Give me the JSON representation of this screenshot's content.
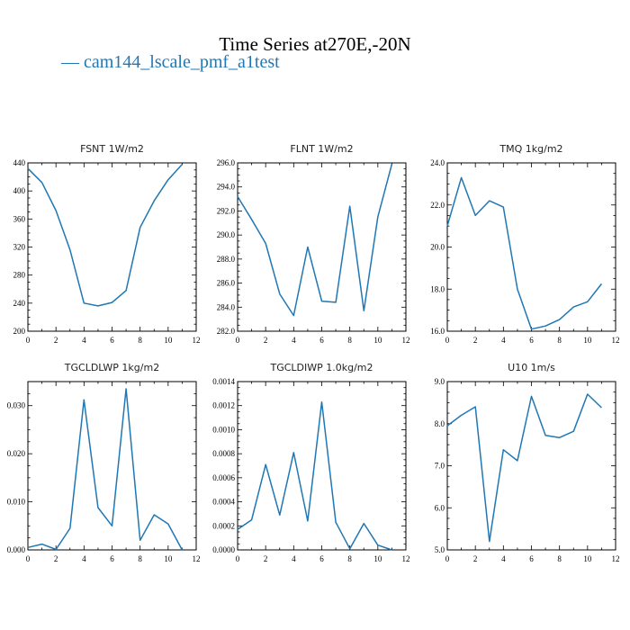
{
  "figure": {
    "title": "Time Series at270E,-20N",
    "legend": "— cam144_lscale_pmf_a1test",
    "series_color": "#1f77b4"
  },
  "chart_data": [
    {
      "type": "line",
      "title": "FSNT   1W/m2",
      "x": [
        0,
        1,
        2,
        3,
        4,
        5,
        6,
        7,
        8,
        9,
        10,
        11
      ],
      "values": [
        432,
        412,
        372,
        316,
        240,
        236,
        241,
        258,
        348,
        386,
        416,
        438
      ],
      "xlim": [
        0,
        12
      ],
      "ylim": [
        200,
        440
      ],
      "xticks": [
        0,
        2,
        4,
        6,
        8,
        10,
        12
      ],
      "yticks": [
        200,
        240,
        280,
        320,
        360,
        400,
        440
      ],
      "ytick_labels": [
        "200",
        "240",
        "280",
        "320",
        "360",
        "400",
        "440"
      ]
    },
    {
      "type": "line",
      "title": "FLNT   1W/m2",
      "x": [
        0,
        1,
        2,
        3,
        4,
        5,
        6,
        7,
        8,
        9,
        10,
        11
      ],
      "values": [
        293.2,
        291.3,
        289.3,
        285.1,
        283.3,
        289.0,
        284.5,
        284.4,
        292.4,
        283.7,
        291.5,
        295.9
      ],
      "xlim": [
        0,
        12
      ],
      "ylim": [
        282,
        296
      ],
      "xticks": [
        0,
        2,
        4,
        6,
        8,
        10,
        12
      ],
      "yticks": [
        282,
        284,
        286,
        288,
        290,
        292,
        294,
        296
      ],
      "ytick_labels": [
        "282.0",
        "284.0",
        "286.0",
        "288.0",
        "290.0",
        "292.0",
        "294.0",
        "296.0"
      ]
    },
    {
      "type": "line",
      "title": "TMQ   1kg/m2",
      "x": [
        0,
        1,
        2,
        3,
        4,
        5,
        6,
        7,
        8,
        9,
        10,
        11
      ],
      "values": [
        21.0,
        23.3,
        21.5,
        22.2,
        21.9,
        18.0,
        16.1,
        16.25,
        16.55,
        17.15,
        17.4,
        18.25
      ],
      "xlim": [
        0,
        12
      ],
      "ylim": [
        16,
        24
      ],
      "xticks": [
        0,
        2,
        4,
        6,
        8,
        10,
        12
      ],
      "yticks": [
        16,
        18,
        20,
        22,
        24
      ],
      "ytick_labels": [
        "16.0",
        "18.0",
        "20.0",
        "22.0",
        "24.0"
      ]
    },
    {
      "type": "line",
      "title": "TGCLDLWP   1kg/m2",
      "x": [
        0,
        1,
        2,
        3,
        4,
        5,
        6,
        7,
        8,
        9,
        10,
        11
      ],
      "values": [
        0.0005,
        0.0012,
        0.0001,
        0.0045,
        0.0312,
        0.0088,
        0.005,
        0.0335,
        0.002,
        0.0073,
        0.0054,
        0.0
      ],
      "xlim": [
        0,
        12
      ],
      "ylim": [
        0,
        0.035
      ],
      "xticks": [
        0,
        2,
        4,
        6,
        8,
        10,
        12
      ],
      "yticks": [
        0,
        0.01,
        0.02,
        0.03
      ],
      "ytick_labels": [
        "0.000",
        "0.010",
        "0.020",
        "0.030"
      ]
    },
    {
      "type": "line",
      "title": "TGCLDIWP   1.0kg/m2",
      "x": [
        0,
        1,
        2,
        3,
        4,
        5,
        6,
        7,
        8,
        9,
        10,
        11
      ],
      "values": [
        0.00017,
        0.00025,
        0.00071,
        0.00029,
        0.00081,
        0.00024,
        0.00123,
        0.00023,
        1e-05,
        0.00022,
        4e-05,
        0.0
      ],
      "xlim": [
        0,
        12
      ],
      "ylim": [
        0,
        0.0014
      ],
      "xticks": [
        0,
        2,
        4,
        6,
        8,
        10,
        12
      ],
      "yticks": [
        0,
        0.0002,
        0.0004,
        0.0006,
        0.0008,
        0.001,
        0.0012,
        0.0014
      ],
      "ytick_labels": [
        "0.0000",
        "0.0002",
        "0.0004",
        "0.0006",
        "0.0008",
        "0.0010",
        "0.0012",
        "0.0014"
      ]
    },
    {
      "type": "line",
      "title": "U10   1m/s",
      "x": [
        0,
        1,
        2,
        3,
        4,
        5,
        6,
        7,
        8,
        9,
        10,
        11
      ],
      "values": [
        7.95,
        8.2,
        8.4,
        5.2,
        7.38,
        7.12,
        8.65,
        7.72,
        7.67,
        7.82,
        8.7,
        8.38
      ],
      "xlim": [
        0,
        12
      ],
      "ylim": [
        5,
        9
      ],
      "xticks": [
        0,
        2,
        4,
        6,
        8,
        10,
        12
      ],
      "yticks": [
        5,
        6,
        7,
        8,
        9
      ],
      "ytick_labels": [
        "5.0",
        "6.0",
        "7.0",
        "8.0",
        "9.0"
      ]
    }
  ]
}
